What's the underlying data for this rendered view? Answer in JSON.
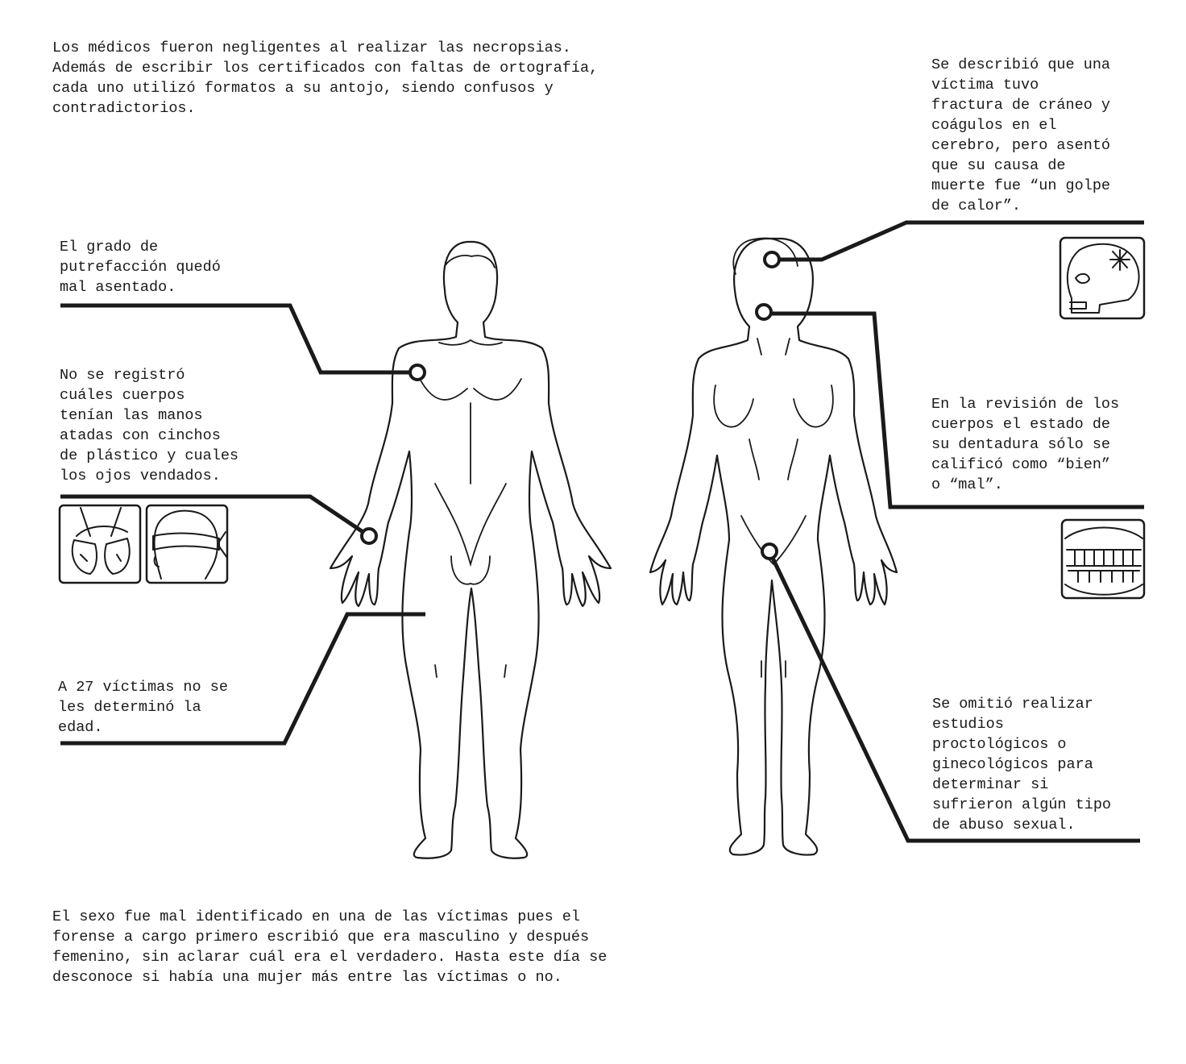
{
  "notes": {
    "intro": "Los médicos fueron negligentes al realizar las necropsias.\nAdemás de escribir los certificados con faltas de ortografía,\ncada uno utilizó formatos a su antojo, siendo confusos y\ncontradictorios.",
    "putrefaction": "El grado de\nputrefacción quedó\nmal asentado.",
    "hands_eyes": "No se registró\ncuáles cuerpos\ntenían las manos\natadas con cinchos\nde plástico y cuales\nlos ojos vendados.",
    "age": "A 27 víctimas no se\nles determinó la\nedad.",
    "skull": "Se describió que una\nvíctima tuvo\nfractura de cráneo y\ncoágulos en el\ncerebro, pero asentó\nque su causa de\nmuerte fue “un golpe\nde calor”.",
    "teeth": "En la revisión de los\ncuerpos el estado de\nsu dentadura sólo se\ncalificó como “bien”\no “mal”.",
    "sexual": "Se omitió realizar\nestudios\nproctológicos o\nginecológicos para\ndeterminar si\nsufrieron algún tipo\nde abuso sexual.",
    "sex": "El sexo fue mal identificado en una de las víctimas pues el\nforense a cargo primero escribió que era masculino y después\nfemenino, sin aclarar cuál era el verdadero. Hasta este día se\ndesconoce si había una mujer más entre las víctimas o no."
  },
  "icons": [
    "tied-hands-icon",
    "blindfold-icon",
    "fractured-skull-icon",
    "teeth-icon"
  ],
  "colors": {
    "ink": "#1a1a1a",
    "background": "#ffffff"
  }
}
